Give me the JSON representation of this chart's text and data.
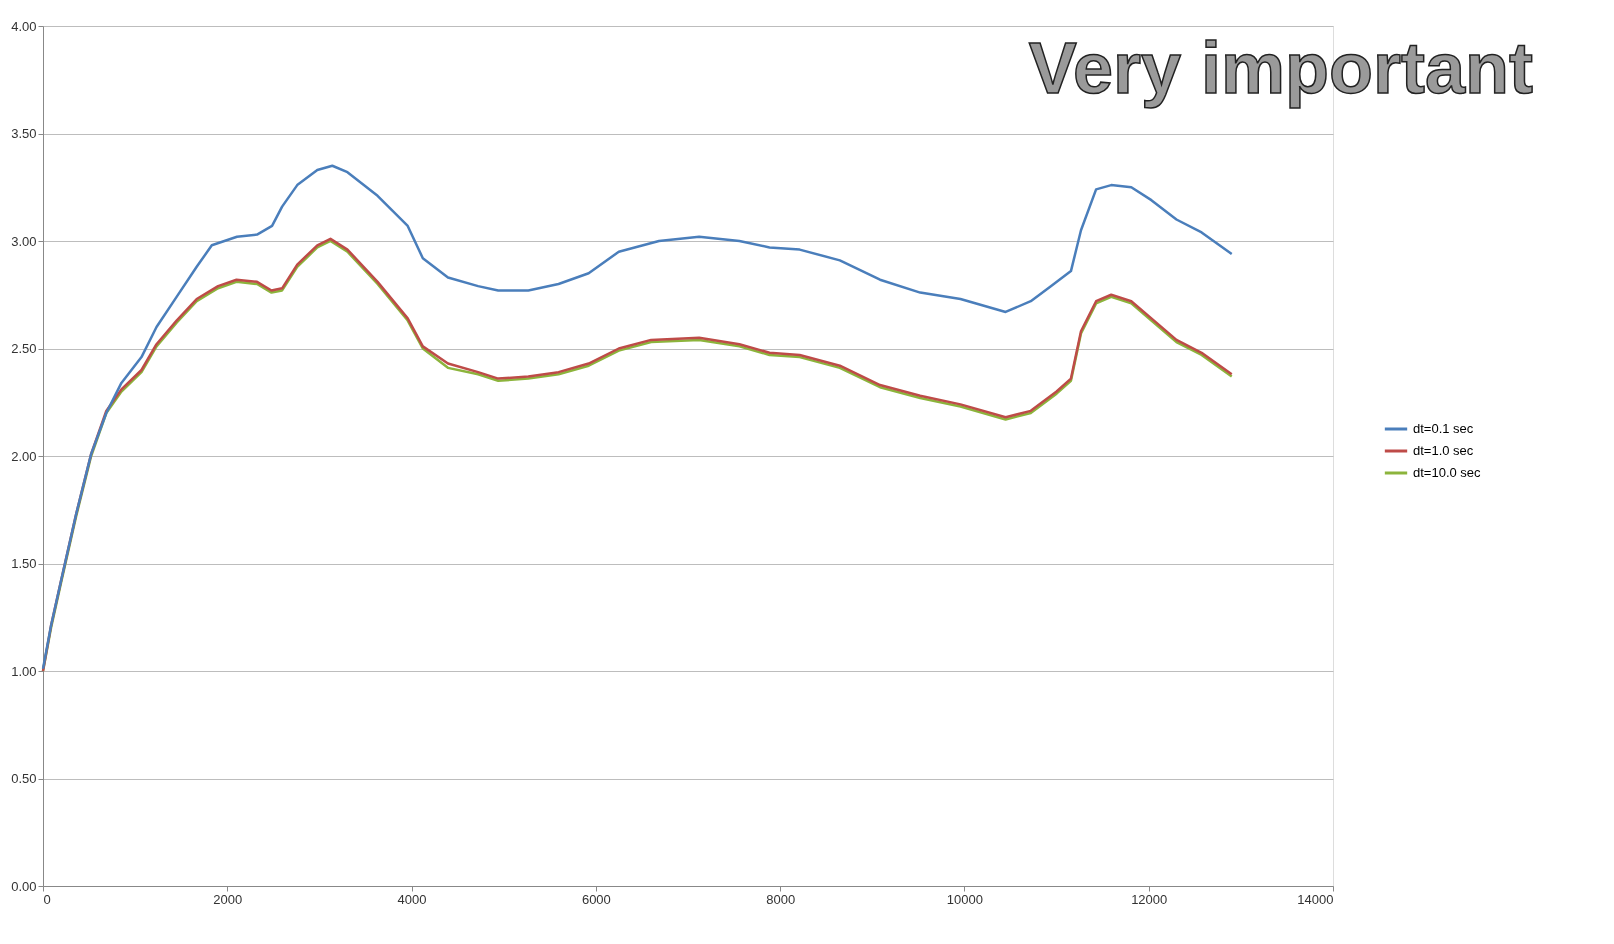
{
  "chart_data": {
    "type": "line",
    "annotations": [
      "Very important"
    ],
    "xlim": [
      0,
      14000
    ],
    "xticks": [
      0,
      2000,
      4000,
      6000,
      8000,
      10000,
      12000,
      14000
    ],
    "ylim": [
      0,
      4
    ],
    "yticks": [
      {
        "value": 0,
        "label": "0.00"
      },
      {
        "value": 0.5,
        "label": "0.50"
      },
      {
        "value": 1,
        "label": "1.00"
      },
      {
        "value": 1.5,
        "label": "1.50"
      },
      {
        "value": 2,
        "label": "2.00"
      },
      {
        "value": 2.5,
        "label": "2.50"
      },
      {
        "value": 3,
        "label": "3.00"
      },
      {
        "value": 3.5,
        "label": "3.50"
      },
      {
        "value": 4,
        "label": "4.00"
      }
    ],
    "grid": "y",
    "legend": "right",
    "marker": "none",
    "line_style": "solid",
    "series": [
      {
        "name": "dt=0.1 sec",
        "color": "#4a7ebb",
        "x": [
          0,
          87,
          196,
          360,
          523,
          687,
          851,
          1069,
          1232,
          1450,
          1668,
          1832,
          2105,
          2323,
          2486,
          2595,
          2759,
          2977,
          3140,
          3304,
          3631,
          3958,
          4122,
          4395,
          4722,
          4940,
          5267,
          5595,
          5922,
          6249,
          6685,
          7121,
          7558,
          7885,
          8212,
          8648,
          9084,
          9520,
          9957,
          10447,
          10720,
          10938,
          11156,
          11265,
          11429,
          11593,
          11811,
          12029,
          12301,
          12574,
          12901
        ],
        "values": [
          1.01,
          1.21,
          1.42,
          1.73,
          2.01,
          2.2,
          2.34,
          2.46,
          2.6,
          2.74,
          2.88,
          2.98,
          3.02,
          3.03,
          3.07,
          3.16,
          3.26,
          3.33,
          3.35,
          3.32,
          3.21,
          3.07,
          2.92,
          2.83,
          2.79,
          2.77,
          2.77,
          2.8,
          2.85,
          2.95,
          3.0,
          3.02,
          3.0,
          2.97,
          2.96,
          2.91,
          2.82,
          2.76,
          2.73,
          2.67,
          2.72,
          2.79,
          2.86,
          3.05,
          3.24,
          3.26,
          3.25,
          3.19,
          3.1,
          3.04,
          2.94
        ]
      },
      {
        "name": "dt=1.0 sec",
        "color": "#be4b48",
        "x": [
          0,
          87,
          196,
          360,
          523,
          687,
          851,
          1069,
          1232,
          1450,
          1668,
          1900,
          2100,
          2323,
          2480,
          2595,
          2759,
          2977,
          3120,
          3304,
          3631,
          3958,
          4122,
          4395,
          4722,
          4940,
          5267,
          5595,
          5922,
          6249,
          6600,
          7121,
          7558,
          7885,
          8212,
          8648,
          9084,
          9520,
          9957,
          10447,
          10720,
          11000,
          11156,
          11265,
          11429,
          11593,
          11811,
          12029,
          12301,
          12574,
          12901
        ],
        "values": [
          1.0,
          1.21,
          1.42,
          1.73,
          2.01,
          2.21,
          2.31,
          2.4,
          2.52,
          2.63,
          2.73,
          2.79,
          2.82,
          2.81,
          2.77,
          2.78,
          2.89,
          2.98,
          3.01,
          2.96,
          2.81,
          2.64,
          2.51,
          2.43,
          2.39,
          2.36,
          2.37,
          2.39,
          2.43,
          2.5,
          2.54,
          2.55,
          2.52,
          2.48,
          2.47,
          2.42,
          2.33,
          2.28,
          2.24,
          2.18,
          2.21,
          2.3,
          2.36,
          2.58,
          2.72,
          2.75,
          2.72,
          2.64,
          2.54,
          2.48,
          2.38
        ]
      },
      {
        "name": "dt=10.0 sec",
        "color": "#8cb43c",
        "x": [
          0,
          87,
          196,
          360,
          523,
          687,
          851,
          1069,
          1232,
          1450,
          1668,
          1900,
          2100,
          2323,
          2480,
          2595,
          2759,
          2977,
          3120,
          3304,
          3631,
          3958,
          4122,
          4395,
          4722,
          4940,
          5267,
          5595,
          5922,
          6249,
          6600,
          7121,
          7558,
          7885,
          8212,
          8648,
          9084,
          9520,
          9957,
          10447,
          10720,
          11000,
          11156,
          11265,
          11429,
          11593,
          11811,
          12029,
          12301,
          12574,
          12901
        ],
        "values": [
          1.0,
          1.2,
          1.41,
          1.72,
          2.0,
          2.2,
          2.3,
          2.39,
          2.51,
          2.62,
          2.72,
          2.78,
          2.81,
          2.8,
          2.76,
          2.77,
          2.88,
          2.97,
          3.0,
          2.95,
          2.8,
          2.63,
          2.5,
          2.41,
          2.38,
          2.35,
          2.36,
          2.38,
          2.42,
          2.49,
          2.53,
          2.54,
          2.51,
          2.47,
          2.46,
          2.41,
          2.32,
          2.27,
          2.23,
          2.17,
          2.2,
          2.29,
          2.35,
          2.57,
          2.71,
          2.74,
          2.71,
          2.63,
          2.53,
          2.47,
          2.37
        ]
      }
    ]
  }
}
